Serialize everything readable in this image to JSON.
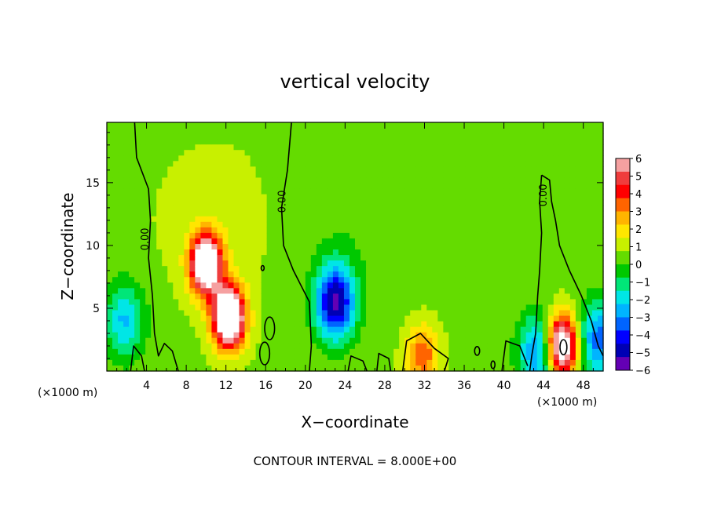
{
  "chart_data": {
    "type": "heatmap",
    "title": "vertical velocity",
    "xlabel": "X−coordinate",
    "ylabel": "Z−coordinate",
    "x_unit_left": "(×1000 m)",
    "x_unit_right": "(×1000 m)",
    "xlim": [
      0,
      50
    ],
    "ylim": [
      0,
      19.8
    ],
    "xticks": [
      4,
      8,
      12,
      16,
      20,
      24,
      28,
      32,
      36,
      40,
      44,
      48
    ],
    "yticks": [
      5,
      10,
      15
    ],
    "colorbar": {
      "ticks": [
        "6",
        "5",
        "4",
        "3",
        "2",
        "1",
        "0",
        "−1",
        "−2",
        "−3",
        "−4",
        "−5",
        "−6"
      ],
      "min": -6,
      "max": 6,
      "colors": [
        "#f5a0a0",
        "#f03c3c",
        "#ff0000",
        "#ff6400",
        "#ffb400",
        "#ffe600",
        "#c8f000",
        "#64dc00",
        "#00c800",
        "#00e678",
        "#00e6e6",
        "#00b4ff",
        "#0064ff",
        "#0000ff",
        "#0000b4",
        "#6400b4"
      ]
    },
    "contour_labels": [
      "0.00",
      "0.00",
      "0.00"
    ],
    "features": [
      {
        "kind": "updraft",
        "x": 10.0,
        "z": 8.5,
        "peak": 8
      },
      {
        "kind": "updraft",
        "x": 12.3,
        "z": 4.3,
        "peak": 9
      },
      {
        "kind": "updraft",
        "x": 45.8,
        "z": 2.0,
        "peak": 8
      },
      {
        "kind": "updraft",
        "x": 31.8,
        "z": 1.2,
        "peak": 3
      },
      {
        "kind": "downdraft",
        "x": 23.0,
        "z": 5.5,
        "peak": -6
      },
      {
        "kind": "downdraft",
        "x": 1.8,
        "z": 4.0,
        "peak": -3
      },
      {
        "kind": "downdraft",
        "x": 49.5,
        "z": 2.5,
        "peak": -4
      },
      {
        "kind": "downdraft",
        "x": 43.5,
        "z": 1.5,
        "peak": -4
      }
    ]
  },
  "footer": "CONTOUR INTERVAL = 8.000E+00"
}
